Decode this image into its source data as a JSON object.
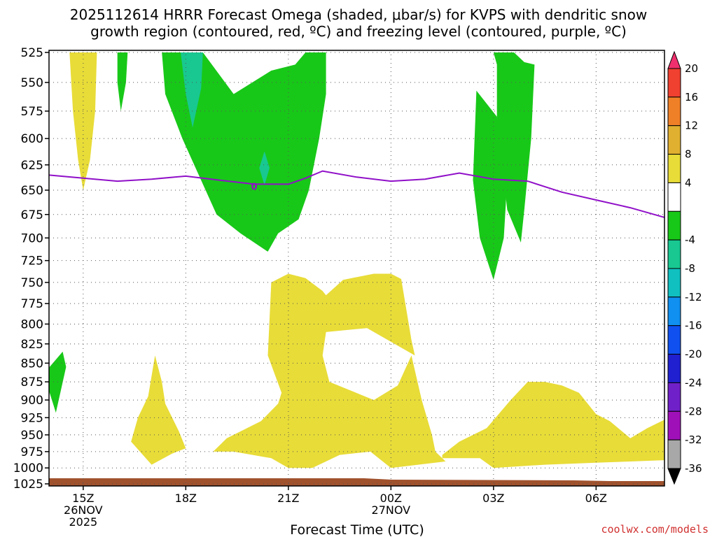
{
  "chart_data": {
    "type": "heatmap",
    "title_line1": "2025112614 HRRR Forecast Omega (shaded, μbar/s) for KVPS with dendritic snow",
    "title_line2": "growth region (contoured, red, ºC) and freezing level (contoured, purple, ºC)",
    "xlabel": "Forecast Time (UTC)",
    "credit": "coolwx.com/models",
    "y_axis": {
      "scale": "log-pressure",
      "range": [
        1025,
        525
      ],
      "ticks": [
        525,
        550,
        575,
        600,
        625,
        650,
        675,
        700,
        725,
        750,
        775,
        800,
        825,
        850,
        875,
        900,
        925,
        950,
        975,
        1000,
        1025
      ]
    },
    "x_axis": {
      "range_hours": [
        14.0,
        32.0
      ],
      "ticks": [
        {
          "hour": 15,
          "lines": [
            "15Z",
            "26NOV",
            "2025"
          ]
        },
        {
          "hour": 18,
          "lines": [
            "18Z"
          ]
        },
        {
          "hour": 21,
          "lines": [
            "21Z"
          ]
        },
        {
          "hour": 24,
          "lines": [
            "00Z",
            "27NOV"
          ]
        },
        {
          "hour": 27,
          "lines": [
            "03Z"
          ]
        },
        {
          "hour": 30,
          "lines": [
            "06Z"
          ]
        }
      ]
    },
    "grid": true,
    "colorbar": {
      "placement": "right",
      "labels": [
        20,
        16,
        12,
        8,
        4,
        -4,
        -8,
        -12,
        -16,
        -20,
        -24,
        -28,
        -32,
        -36
      ],
      "colors": [
        "#f0306e",
        "#f04030",
        "#f08028",
        "#e0b030",
        "#e8dc38",
        "#ffffff",
        "#18c818",
        "#18c890",
        "#10c0c0",
        "#1090f0",
        "#1050f0",
        "#2020d0",
        "#7020c8",
        "#a010b8",
        "#a8a8a8",
        "#000000"
      ]
    },
    "fills": {
      "green": "#18c818",
      "teal": "#18c890",
      "yellow": "#e8dc38",
      "freezing_line": "#9010c8",
      "ground": "#a0522d"
    },
    "freezing_level": {
      "label": "0",
      "points": [
        [
          14.0,
          635
        ],
        [
          15.0,
          638
        ],
        [
          16.0,
          641
        ],
        [
          17.0,
          639
        ],
        [
          18.0,
          636
        ],
        [
          19.0,
          640
        ],
        [
          20.0,
          644
        ],
        [
          21.0,
          644
        ],
        [
          21.5,
          638
        ],
        [
          22.0,
          631
        ],
        [
          23.0,
          637
        ],
        [
          24.0,
          641
        ],
        [
          25.0,
          639
        ],
        [
          26.0,
          633
        ],
        [
          27.0,
          639
        ],
        [
          28.0,
          641
        ],
        [
          29.0,
          652
        ],
        [
          30.0,
          660
        ],
        [
          31.0,
          668
        ],
        [
          32.0,
          678
        ]
      ],
      "label_at": [
        20.0,
        646
      ]
    },
    "regions": [
      {
        "color": "yellow",
        "points": [
          [
            14.6,
            525
          ],
          [
            15.4,
            525
          ],
          [
            15.35,
            575
          ],
          [
            15.2,
            620
          ],
          [
            15.0,
            650
          ],
          [
            14.85,
            620
          ],
          [
            14.7,
            575
          ]
        ]
      },
      {
        "color": "green",
        "points": [
          [
            16.0,
            525
          ],
          [
            16.3,
            525
          ],
          [
            16.25,
            550
          ],
          [
            16.1,
            575
          ],
          [
            16.0,
            550
          ]
        ]
      },
      {
        "color": "green",
        "points": [
          [
            17.3,
            525
          ],
          [
            18.5,
            525
          ],
          [
            19.4,
            560
          ],
          [
            20.5,
            540
          ],
          [
            21.2,
            535
          ],
          [
            21.5,
            525
          ],
          [
            22.1,
            525
          ],
          [
            22.1,
            560
          ],
          [
            21.9,
            600
          ],
          [
            21.6,
            650
          ],
          [
            21.3,
            680
          ],
          [
            20.7,
            695
          ],
          [
            20.4,
            715
          ],
          [
            19.6,
            695
          ],
          [
            18.9,
            675
          ],
          [
            17.9,
            600
          ],
          [
            17.4,
            560
          ]
        ]
      },
      {
        "color": "teal",
        "points": [
          [
            17.85,
            525
          ],
          [
            18.5,
            525
          ],
          [
            18.45,
            555
          ],
          [
            18.2,
            590
          ],
          [
            18.0,
            560
          ]
        ]
      },
      {
        "color": "teal",
        "points": [
          [
            20.15,
            628
          ],
          [
            20.3,
            612
          ],
          [
            20.45,
            628
          ],
          [
            20.3,
            645
          ]
        ]
      },
      {
        "color": "green",
        "points": [
          [
            26.5,
            557
          ],
          [
            27.1,
            580
          ],
          [
            27.4,
            640
          ],
          [
            27.3,
            700
          ],
          [
            27.0,
            747
          ],
          [
            26.6,
            700
          ],
          [
            26.4,
            640
          ]
        ]
      },
      {
        "color": "green",
        "points": [
          [
            27.0,
            525
          ],
          [
            27.6,
            525
          ],
          [
            27.9,
            533
          ],
          [
            28.2,
            535
          ],
          [
            28.1,
            600
          ],
          [
            27.9,
            670
          ],
          [
            27.8,
            705
          ],
          [
            27.4,
            670
          ],
          [
            27.1,
            580
          ],
          [
            27.1,
            535
          ]
        ]
      },
      {
        "color": "green",
        "points": [
          [
            14.0,
            856
          ],
          [
            14.4,
            835
          ],
          [
            14.5,
            855
          ],
          [
            14.2,
            918
          ],
          [
            13.95,
            880
          ]
        ]
      },
      {
        "color": "yellow",
        "points": [
          [
            20.5,
            750
          ],
          [
            21.0,
            740
          ],
          [
            21.5,
            745
          ],
          [
            22.0,
            760
          ],
          [
            22.1,
            765
          ],
          [
            22.6,
            747
          ],
          [
            23.5,
            740
          ],
          [
            24.0,
            740
          ],
          [
            24.3,
            746
          ],
          [
            24.6,
            820
          ],
          [
            24.7,
            840
          ],
          [
            23.3,
            805
          ],
          [
            22.1,
            810
          ],
          [
            22.0,
            840
          ],
          [
            22.2,
            875
          ],
          [
            23.5,
            900
          ],
          [
            24.2,
            880
          ],
          [
            24.6,
            840
          ],
          [
            24.9,
            900
          ],
          [
            25.2,
            950
          ],
          [
            25.3,
            975
          ],
          [
            25.6,
            990
          ],
          [
            24.0,
            1000
          ],
          [
            23.4,
            975
          ],
          [
            22.5,
            980
          ],
          [
            21.7,
            1000
          ],
          [
            21.0,
            1000
          ],
          [
            20.5,
            985
          ],
          [
            19.4,
            975
          ],
          [
            18.8,
            975
          ],
          [
            19.2,
            955
          ],
          [
            20.2,
            930
          ],
          [
            20.7,
            905
          ],
          [
            20.8,
            890
          ],
          [
            20.4,
            840
          ]
        ]
      },
      {
        "color": "yellow",
        "points": [
          [
            16.4,
            960
          ],
          [
            16.6,
            925
          ],
          [
            16.9,
            895
          ],
          [
            17.1,
            840
          ],
          [
            17.3,
            875
          ],
          [
            17.4,
            905
          ],
          [
            17.8,
            945
          ],
          [
            18.0,
            970
          ],
          [
            17.6,
            978
          ],
          [
            17.0,
            995
          ]
        ]
      },
      {
        "color": "yellow",
        "points": [
          [
            25.5,
            980
          ],
          [
            26.0,
            960
          ],
          [
            26.8,
            940
          ],
          [
            27.5,
            900
          ],
          [
            28.0,
            875
          ],
          [
            28.5,
            875
          ],
          [
            29.0,
            880
          ],
          [
            29.5,
            890
          ],
          [
            30.0,
            920
          ],
          [
            30.4,
            930
          ],
          [
            31.0,
            955
          ],
          [
            31.5,
            940
          ],
          [
            32.0,
            928
          ],
          [
            32.0,
            988
          ],
          [
            31.0,
            990
          ],
          [
            30.0,
            992
          ],
          [
            28.5,
            995
          ],
          [
            27.0,
            1000
          ],
          [
            26.6,
            985
          ],
          [
            25.5,
            985
          ]
        ]
      }
    ]
  }
}
